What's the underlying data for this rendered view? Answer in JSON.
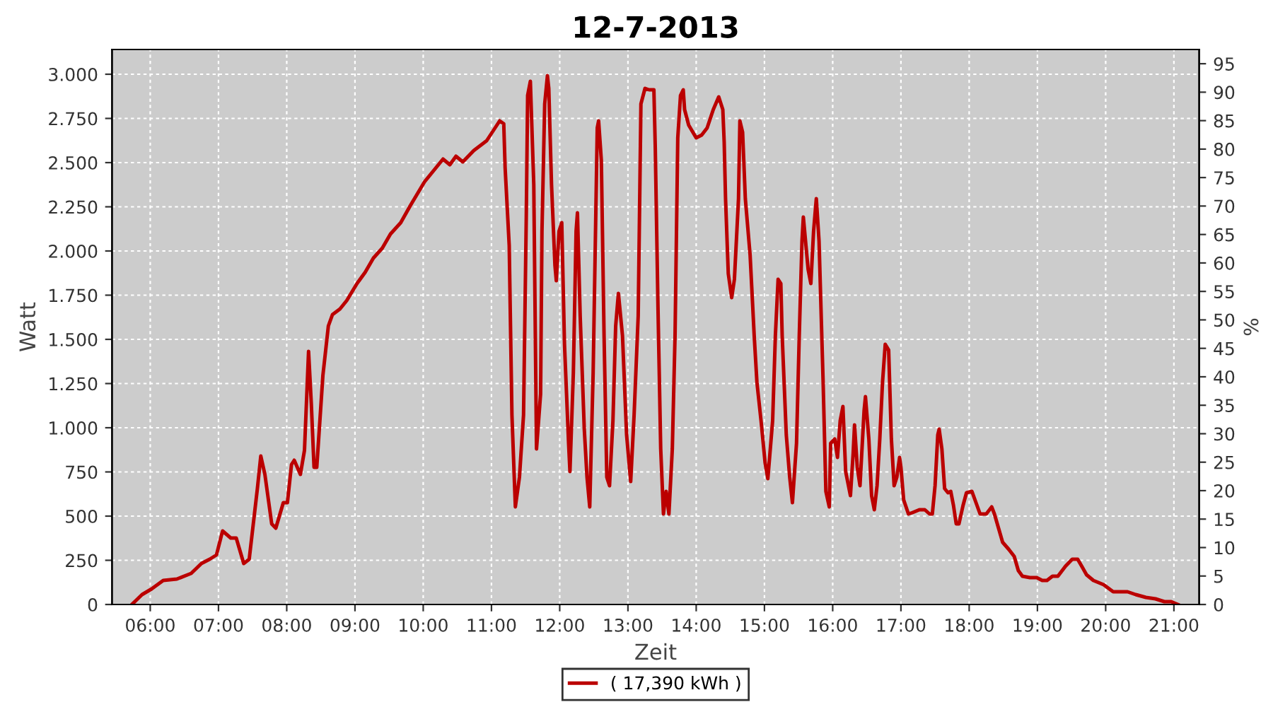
{
  "chart_data": {
    "type": "line",
    "title": "12-7-2013",
    "xlabel": "Zeit",
    "ylabel": "Watt",
    "y2label": "%",
    "xlim": [
      5.44,
      21.37
    ],
    "xticks": [
      {
        "value": 6,
        "label": "06:00"
      },
      {
        "value": 7,
        "label": "07:00"
      },
      {
        "value": 8,
        "label": "08:00"
      },
      {
        "value": 9,
        "label": "09:00"
      },
      {
        "value": 10,
        "label": "10:00"
      },
      {
        "value": 11,
        "label": "11:00"
      },
      {
        "value": 12,
        "label": "12:00"
      },
      {
        "value": 13,
        "label": "13:00"
      },
      {
        "value": 14,
        "label": "14:00"
      },
      {
        "value": 15,
        "label": "15:00"
      },
      {
        "value": 16,
        "label": "16:00"
      },
      {
        "value": 17,
        "label": "17:00"
      },
      {
        "value": 18,
        "label": "18:00"
      },
      {
        "value": 19,
        "label": "19:00"
      },
      {
        "value": 20,
        "label": "20:00"
      },
      {
        "value": 21,
        "label": "21:00"
      }
    ],
    "ylim": [
      0,
      3140
    ],
    "yticks": [
      0,
      250,
      500,
      750,
      {
        "value": 1000,
        "label": "1.000"
      },
      {
        "value": 1250,
        "label": "1.250"
      },
      {
        "value": 1500,
        "label": "1.500"
      },
      {
        "value": 1750,
        "label": "1.750"
      },
      {
        "value": 2000,
        "label": "2.000"
      },
      {
        "value": 2250,
        "label": "2.250"
      },
      {
        "value": 2500,
        "label": "2.500"
      },
      {
        "value": 2750,
        "label": "2.750"
      },
      {
        "value": 3000,
        "label": "3.000"
      }
    ],
    "y2lim": [
      0,
      97.5
    ],
    "y2ticks": [
      0,
      5,
      10,
      15,
      20,
      25,
      30,
      35,
      40,
      45,
      50,
      55,
      60,
      65,
      70,
      75,
      80,
      85,
      90,
      95
    ],
    "grid": true,
    "legend": "bottom",
    "marker": "none",
    "line_style": "solid",
    "series": [
      {
        "name": "( 17,390 kWh )",
        "color": "#bb0000",
        "x": [
          5.73,
          5.88,
          6.02,
          6.19,
          6.39,
          6.6,
          6.75,
          6.87,
          6.97,
          7.06,
          7.18,
          7.26,
          7.37,
          7.45,
          7.57,
          7.62,
          7.68,
          7.78,
          7.84,
          7.95,
          8.01,
          8.07,
          8.11,
          8.2,
          8.26,
          8.32,
          8.36,
          8.4,
          8.44,
          8.53,
          8.61,
          8.67,
          8.78,
          8.88,
          9.03,
          9.15,
          9.27,
          9.4,
          9.52,
          9.67,
          9.81,
          10.02,
          10.29,
          10.39,
          10.48,
          10.58,
          10.74,
          10.93,
          11.12,
          11.18,
          11.2,
          11.26,
          11.3,
          11.35,
          11.41,
          11.47,
          11.51,
          11.53,
          11.57,
          11.62,
          11.66,
          11.72,
          11.74,
          11.78,
          11.82,
          11.84,
          11.88,
          11.93,
          11.95,
          11.99,
          12.03,
          12.07,
          12.13,
          12.15,
          12.2,
          12.24,
          12.26,
          12.3,
          12.36,
          12.4,
          12.44,
          12.49,
          12.55,
          12.57,
          12.61,
          12.65,
          12.69,
          12.73,
          12.78,
          12.82,
          12.86,
          12.92,
          12.98,
          13.04,
          13.09,
          13.15,
          13.19,
          13.25,
          13.31,
          13.38,
          13.4,
          13.44,
          13.48,
          13.52,
          13.56,
          13.6,
          13.65,
          13.69,
          13.73,
          13.77,
          13.81,
          13.83,
          13.89,
          14.0,
          14.08,
          14.16,
          14.25,
          14.33,
          14.39,
          14.41,
          14.43,
          14.47,
          14.52,
          14.56,
          14.62,
          14.64,
          14.68,
          14.72,
          14.79,
          14.85,
          14.89,
          14.95,
          15.01,
          15.05,
          15.12,
          15.16,
          15.2,
          15.24,
          15.26,
          15.32,
          15.37,
          15.41,
          15.47,
          15.51,
          15.55,
          15.57,
          15.64,
          15.68,
          15.72,
          15.76,
          15.8,
          15.86,
          15.9,
          15.95,
          15.97,
          16.03,
          16.07,
          16.11,
          16.15,
          16.19,
          16.26,
          16.3,
          16.32,
          16.36,
          16.4,
          16.46,
          16.48,
          16.53,
          16.57,
          16.61,
          16.65,
          16.69,
          16.73,
          16.77,
          16.82,
          16.86,
          16.9,
          16.94,
          16.98,
          17.0,
          17.04,
          17.11,
          17.17,
          17.27,
          17.35,
          17.42,
          17.46,
          17.5,
          17.54,
          17.56,
          17.6,
          17.64,
          17.69,
          17.73,
          17.77,
          17.81,
          17.85,
          17.91,
          17.96,
          18.04,
          18.1,
          18.16,
          18.25,
          18.33,
          18.37,
          18.43,
          18.49,
          18.58,
          18.66,
          18.72,
          18.78,
          18.89,
          18.99,
          19.07,
          19.14,
          19.22,
          19.3,
          19.41,
          19.51,
          19.59,
          19.65,
          19.72,
          19.82,
          19.97,
          20.11,
          20.32,
          20.44,
          20.59,
          20.73,
          20.86,
          20.96,
          21.06
        ],
        "values": [
          0,
          56,
          88,
          136,
          144,
          176,
          232,
          256,
          280,
          416,
          376,
          376,
          232,
          256,
          656,
          840,
          736,
          456,
          432,
          576,
          576,
          792,
          816,
          736,
          872,
          1432,
          1136,
          776,
          776,
          1296,
          1576,
          1640,
          1672,
          1720,
          1816,
          1880,
          1960,
          2016,
          2096,
          2160,
          2256,
          2392,
          2520,
          2488,
          2536,
          2504,
          2568,
          2624,
          2736,
          2720,
          2472,
          2032,
          1072,
          552,
          720,
          1072,
          2192,
          2880,
          2960,
          2376,
          880,
          1192,
          2112,
          2832,
          2992,
          2920,
          2376,
          1920,
          1832,
          2112,
          2160,
          1472,
          912,
          752,
          1312,
          2112,
          2216,
          1632,
          992,
          720,
          552,
          1312,
          2696,
          2736,
          2512,
          1520,
          720,
          672,
          1040,
          1576,
          1760,
          1520,
          960,
          696,
          1072,
          1632,
          2832,
          2920,
          2912,
          2912,
          2592,
          1680,
          880,
          512,
          640,
          512,
          880,
          1520,
          2640,
          2880,
          2912,
          2800,
          2712,
          2640,
          2656,
          2696,
          2800,
          2872,
          2800,
          2616,
          2296,
          1872,
          1736,
          1840,
          2296,
          2736,
          2672,
          2296,
          1976,
          1520,
          1256,
          1040,
          800,
          712,
          1040,
          1520,
          1840,
          1816,
          1520,
          960,
          720,
          576,
          912,
          1520,
          2056,
          2192,
          1896,
          1816,
          2112,
          2296,
          2056,
          1256,
          640,
          552,
          912,
          936,
          832,
          1040,
          1120,
          752,
          616,
          856,
          1016,
          776,
          672,
          1096,
          1176,
          936,
          616,
          536,
          672,
          936,
          1256,
          1472,
          1440,
          936,
          672,
          720,
          832,
          776,
          592,
          512,
          520,
          536,
          536,
          512,
          512,
          672,
          960,
          992,
          880,
          656,
          632,
          640,
          560,
          456,
          456,
          560,
          632,
          640,
          576,
          512,
          512,
          552,
          512,
          432,
          352,
          312,
          272,
          192,
          160,
          152,
          152,
          136,
          136,
          160,
          160,
          216,
          256,
          256,
          216,
          168,
          136,
          112,
          72,
          72,
          56,
          40,
          32,
          16,
          16,
          0
        ]
      }
    ]
  }
}
